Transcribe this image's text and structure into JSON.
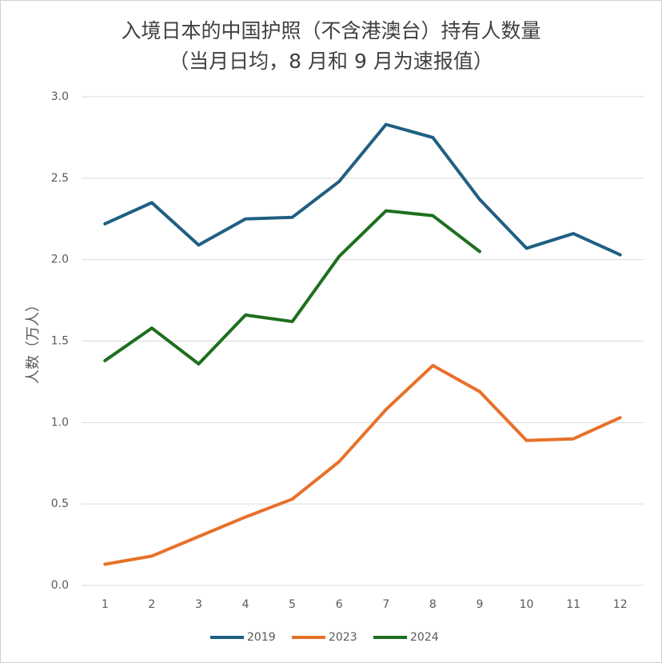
{
  "chart_data": {
    "type": "line",
    "title": "入境日本的中国护照（不含港澳台）持有人数量",
    "subtitle": "（当月日均，8 月和 9 月为速报值）",
    "y_label": "人数（万人）",
    "categories": [
      "1",
      "2",
      "3",
      "4",
      "5",
      "6",
      "7",
      "8",
      "9",
      "10",
      "11",
      "12"
    ],
    "series": [
      {
        "name": "2019",
        "color": "#1f5f82",
        "values": [
          2.22,
          2.35,
          2.09,
          2.25,
          2.26,
          2.48,
          2.83,
          2.75,
          2.37,
          2.07,
          2.16,
          2.03
        ]
      },
      {
        "name": "2023",
        "color": "#e8702a",
        "values": [
          0.13,
          0.18,
          0.3,
          0.42,
          0.53,
          0.76,
          1.08,
          1.35,
          1.19,
          0.89,
          0.9,
          1.03
        ]
      },
      {
        "name": "2024",
        "color": "#1e6f1e",
        "values": [
          1.38,
          1.58,
          1.36,
          1.66,
          1.62,
          2.02,
          2.3,
          2.27,
          2.05,
          null,
          null,
          null
        ]
      }
    ],
    "ylim": [
      0,
      3
    ],
    "yticks": [
      {
        "value": 0,
        "label": "0.0"
      },
      0.5,
      {
        "value": 1,
        "label": "1.0"
      },
      1.5,
      {
        "value": 2,
        "label": "2.0"
      },
      2.5,
      {
        "value": 3,
        "label": "3.0"
      }
    ],
    "grid": true,
    "legend": "bottom"
  }
}
